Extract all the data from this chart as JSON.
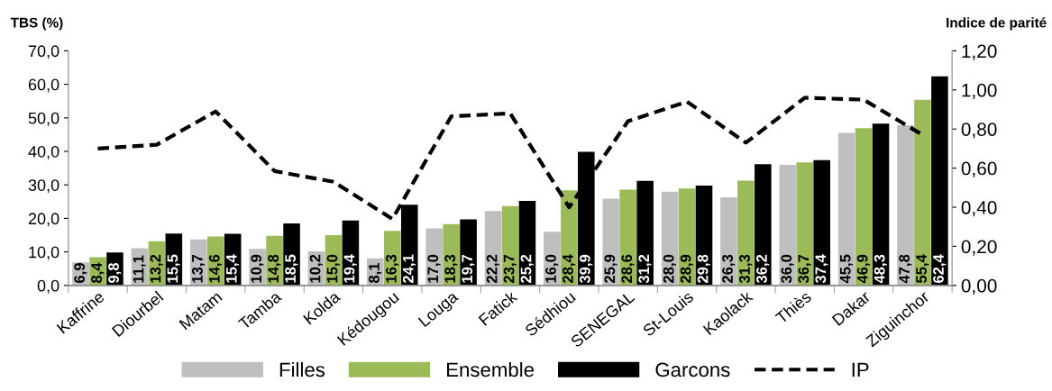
{
  "chart_data": {
    "type": "bar",
    "ylabel": "TBS (%)",
    "y2label": "Indice de parité",
    "categories": [
      "Kaffrine",
      "Diourbel",
      "Matam",
      "Tamba",
      "Kolda",
      "Kédougou",
      "Louga",
      "Fatick",
      "Sédhiou",
      "SENEGAL",
      "St-Louis",
      "Kaolack",
      "Thiès",
      "Dakar",
      "Ziguinchor"
    ],
    "series": [
      {
        "name": "Filles",
        "color": "#bfbfbf",
        "values": [
          6.9,
          11.1,
          13.7,
          10.9,
          10.2,
          8.1,
          17.0,
          22.2,
          16.0,
          25.9,
          28.0,
          26.3,
          36.0,
          45.5,
          47.8
        ],
        "value_labels": [
          "6,9",
          "11,1",
          "13,7",
          "10,9",
          "10,2",
          "8,1",
          "17,0",
          "22,2",
          "16,0",
          "25,9",
          "28,0",
          "26,3",
          "36,0",
          "45,5",
          "47,8"
        ]
      },
      {
        "name": "Ensemble",
        "color": "#9bbb59",
        "values": [
          8.4,
          13.2,
          14.6,
          14.8,
          15.0,
          16.3,
          18.3,
          23.7,
          28.4,
          28.6,
          28.9,
          31.3,
          36.7,
          46.9,
          55.4
        ],
        "value_labels": [
          "8,4",
          "13,2",
          "14,6",
          "14,8",
          "15,0",
          "16,3",
          "18,3",
          "23,7",
          "28,4",
          "28,6",
          "28,9",
          "31,3",
          "36,7",
          "46,9",
          "55,4"
        ]
      },
      {
        "name": "Garcons",
        "color": "#000000",
        "values": [
          9.8,
          15.5,
          15.4,
          18.5,
          19.4,
          24.1,
          19.7,
          25.2,
          39.9,
          31.2,
          29.8,
          36.2,
          37.4,
          48.3,
          62.4
        ],
        "value_labels": [
          "9,8",
          "15,5",
          "15,4",
          "18,5",
          "19,4",
          "24,1",
          "19,7",
          "25,2",
          "39,9",
          "31,2",
          "29,8",
          "36,2",
          "37,4",
          "48,3",
          "62,4"
        ]
      },
      {
        "name": "IP",
        "type": "line",
        "axis": "y2",
        "color": "#000000",
        "line_style": "dashed",
        "values": [
          0.7,
          0.72,
          0.89,
          0.585,
          0.53,
          0.34,
          0.865,
          0.88,
          0.4,
          0.84,
          0.94,
          0.73,
          0.96,
          0.95,
          0.77
        ]
      }
    ],
    "ylim": [
      0,
      70
    ],
    "yticks": [
      {
        "value": 0,
        "label": "0,0"
      },
      {
        "value": 10,
        "label": "10,0"
      },
      {
        "value": 20,
        "label": "20,0"
      },
      {
        "value": 30,
        "label": "30,0"
      },
      {
        "value": 40,
        "label": "40,0"
      },
      {
        "value": 50,
        "label": "50,0"
      },
      {
        "value": 60,
        "label": "60,0"
      },
      {
        "value": 70,
        "label": "70,0"
      }
    ],
    "y2lim": [
      0,
      1.2
    ],
    "y2ticks": [
      {
        "value": 0,
        "label": "0,00"
      },
      {
        "value": 0.2,
        "label": "0,20"
      },
      {
        "value": 0.4,
        "label": "0,40"
      },
      {
        "value": 0.6,
        "label": "0,60"
      },
      {
        "value": 0.8,
        "label": "0,80"
      },
      {
        "value": 1.0,
        "label": "1,00"
      },
      {
        "value": 1.2,
        "label": "1,20"
      }
    ],
    "grid": false,
    "legend": "bottom"
  }
}
